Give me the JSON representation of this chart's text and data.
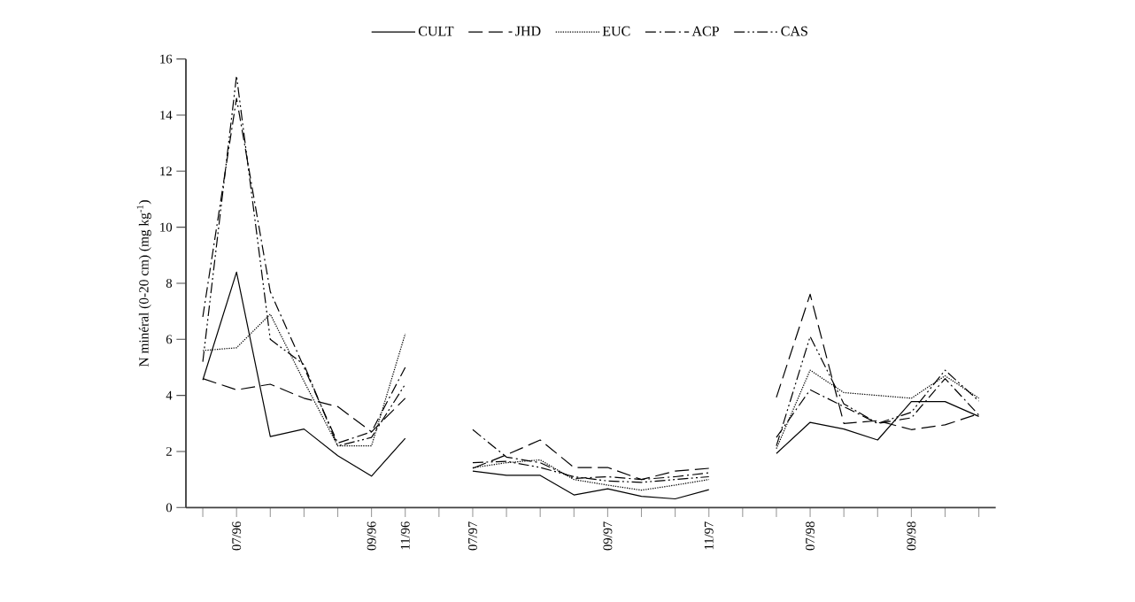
{
  "chart_data": {
    "type": "line",
    "ylabel": "N minéral (0-20 cm) (mg kg$^{-1}$)",
    "categories": [
      null,
      "07/96",
      null,
      null,
      null,
      "09/96",
      "11/96",
      null,
      "07/97",
      null,
      null,
      null,
      "09/97",
      null,
      null,
      "11/97",
      null,
      null,
      "07/98",
      null,
      null,
      "09/98",
      null,
      null
    ],
    "ylim": [
      0,
      16
    ],
    "yticks": [
      0,
      2,
      4,
      6,
      8,
      10,
      12,
      14,
      16
    ],
    "legend": "top",
    "series": [
      {
        "name": "CULT",
        "color": "#000000",
        "line_style": "solid",
        "values": [
          4.55,
          8.4,
          2.53,
          2.8,
          1.85,
          1.12,
          2.47,
          null,
          1.3,
          1.15,
          1.15,
          0.45,
          0.67,
          0.4,
          0.31,
          0.64,
          null,
          1.93,
          3.04,
          2.8,
          2.41,
          3.78,
          3.78,
          3.25
        ]
      },
      {
        "name": "JHD",
        "color": "#000000",
        "line_style": "dashed",
        "values": [
          4.6,
          4.2,
          4.4,
          3.9,
          3.6,
          2.7,
          3.9,
          null,
          1.4,
          1.88,
          2.41,
          1.43,
          1.43,
          1.0,
          1.3,
          1.4,
          null,
          3.93,
          7.61,
          3.0,
          3.1,
          2.78,
          2.95,
          3.35
        ]
      },
      {
        "name": "EUC",
        "color": "#000000",
        "line_style": "dotted",
        "values": [
          5.6,
          5.7,
          6.9,
          4.5,
          2.2,
          2.2,
          6.2,
          null,
          1.42,
          1.6,
          1.7,
          1.0,
          0.8,
          0.62,
          0.8,
          1.0,
          null,
          2.1,
          4.9,
          4.1,
          4.0,
          3.9,
          4.7,
          3.9
        ]
      },
      {
        "name": "ACP",
        "color": "#000000",
        "line_style": "dashdot",
        "values": [
          6.8,
          14.6,
          7.7,
          5.0,
          2.3,
          2.7,
          5.0,
          null,
          2.78,
          1.8,
          1.6,
          1.04,
          1.1,
          1.0,
          1.1,
          1.24,
          null,
          2.5,
          4.2,
          3.6,
          3.0,
          3.2,
          4.6,
          3.3
        ]
      },
      {
        "name": "CAS",
        "color": "#000000",
        "line_style": "dashdotdot",
        "values": [
          5.2,
          15.4,
          6.0,
          5.1,
          2.2,
          2.5,
          4.4,
          null,
          1.6,
          1.65,
          1.43,
          1.1,
          0.95,
          0.9,
          1.0,
          1.1,
          null,
          2.2,
          6.1,
          3.7,
          3.0,
          3.4,
          4.9,
          3.8
        ]
      }
    ]
  }
}
